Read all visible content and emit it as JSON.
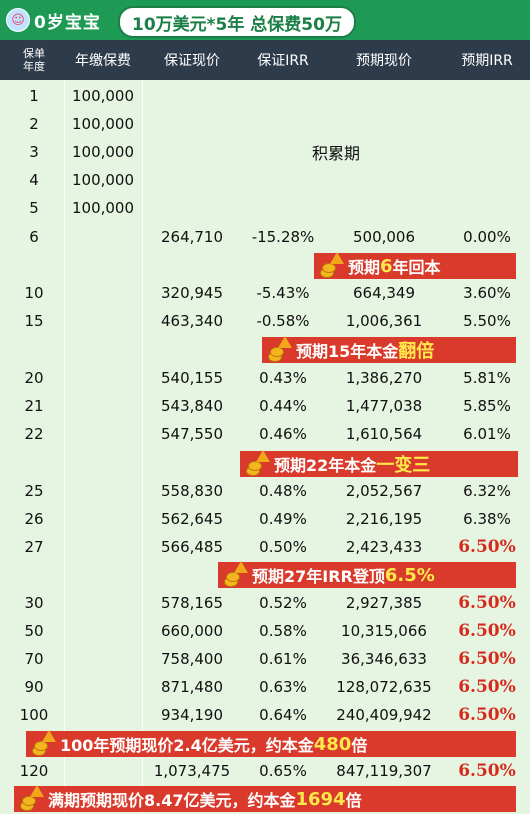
{
  "header": {
    "baby_icon": "baby-face-icon",
    "age_label": "0岁宝宝",
    "plan_pill": "10万美元*5年 总保费50万"
  },
  "columns": [
    "保单年度",
    "年缴保费",
    "保证现价",
    "保证IRR",
    "预期现价",
    "预期IRR"
  ],
  "accumulation_label": "积累期",
  "rows": [
    {
      "year": "1",
      "premium": "100,000",
      "guar": "",
      "guar_irr": "",
      "exp": "",
      "exp_irr": ""
    },
    {
      "year": "2",
      "premium": "100,000",
      "guar": "",
      "guar_irr": "",
      "exp": "",
      "exp_irr": ""
    },
    {
      "year": "3",
      "premium": "100,000",
      "guar": "",
      "guar_irr": "",
      "exp": "",
      "exp_irr": ""
    },
    {
      "year": "4",
      "premium": "100,000",
      "guar": "",
      "guar_irr": "",
      "exp": "",
      "exp_irr": ""
    },
    {
      "year": "5",
      "premium": "100,000",
      "guar": "",
      "guar_irr": "",
      "exp": "",
      "exp_irr": ""
    },
    {
      "year": "6",
      "premium": "",
      "guar": "264,710",
      "guar_irr": "-15.28%",
      "exp": "500,006",
      "exp_irr": "0.00%"
    },
    {
      "year": "10",
      "premium": "",
      "guar": "320,945",
      "guar_irr": "-5.43%",
      "exp": "664,349",
      "exp_irr": "3.60%"
    },
    {
      "year": "15",
      "premium": "",
      "guar": "463,340",
      "guar_irr": "-0.58%",
      "exp": "1,006,361",
      "exp_irr": "5.50%"
    },
    {
      "year": "20",
      "premium": "",
      "guar": "540,155",
      "guar_irr": "0.43%",
      "exp": "1,386,270",
      "exp_irr": "5.81%"
    },
    {
      "year": "21",
      "premium": "",
      "guar": "543,840",
      "guar_irr": "0.44%",
      "exp": "1,477,038",
      "exp_irr": "5.85%"
    },
    {
      "year": "22",
      "premium": "",
      "guar": "547,550",
      "guar_irr": "0.46%",
      "exp": "1,610,564",
      "exp_irr": "6.01%"
    },
    {
      "year": "25",
      "premium": "",
      "guar": "558,830",
      "guar_irr": "0.48%",
      "exp": "2,052,567",
      "exp_irr": "6.32%"
    },
    {
      "year": "26",
      "premium": "",
      "guar": "562,645",
      "guar_irr": "0.49%",
      "exp": "2,216,195",
      "exp_irr": "6.38%"
    },
    {
      "year": "27",
      "premium": "",
      "guar": "566,485",
      "guar_irr": "0.50%",
      "exp": "2,423,433",
      "exp_irr": "6.50%"
    },
    {
      "year": "30",
      "premium": "",
      "guar": "578,165",
      "guar_irr": "0.52%",
      "exp": "2,927,385",
      "exp_irr": "6.50%"
    },
    {
      "year": "50",
      "premium": "",
      "guar": "660,000",
      "guar_irr": "0.58%",
      "exp": "10,315,066",
      "exp_irr": "6.50%"
    },
    {
      "year": "70",
      "premium": "",
      "guar": "758,400",
      "guar_irr": "0.61%",
      "exp": "36,346,633",
      "exp_irr": "6.50%"
    },
    {
      "year": "90",
      "premium": "",
      "guar": "871,480",
      "guar_irr": "0.63%",
      "exp": "128,072,635",
      "exp_irr": "6.50%"
    },
    {
      "year": "100",
      "premium": "",
      "guar": "934,190",
      "guar_irr": "0.64%",
      "exp": "240,409,942",
      "exp_irr": "6.50%"
    },
    {
      "year": "120",
      "premium": "",
      "guar": "1,073,475",
      "guar_irr": "0.65%",
      "exp": "847,119,307",
      "exp_irr": "6.50%"
    }
  ],
  "banners": {
    "b6": {
      "pre": "预期",
      "hl": "6",
      "post": "年回本"
    },
    "b15": {
      "pre": "预期15年本金",
      "hl": "翻倍",
      "post": ""
    },
    "b22": {
      "pre": "预期22年本金",
      "hl": "一变三",
      "post": ""
    },
    "b27": {
      "pre": "预期27年IRR登顶",
      "hl": "6.5%",
      "post": ""
    },
    "b100": {
      "pre": "100年预期现价2.4亿美元，约本金",
      "hl": "480",
      "post": "倍"
    },
    "b120": {
      "pre": "满期预期现价8.47亿美元，约本金",
      "hl": "1694",
      "post": "倍"
    }
  },
  "colors": {
    "header_bg": "#2e3b4a",
    "banner": "#d93a2b",
    "top": "#1e9a55",
    "highlight_irr": "#d52a1c"
  }
}
